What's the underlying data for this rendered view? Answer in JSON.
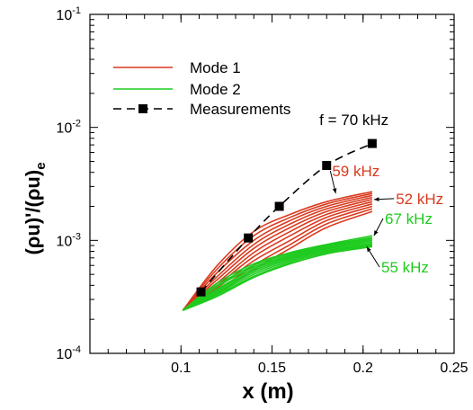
{
  "chart_data": {
    "type": "line",
    "title": "",
    "xlabel": "x (m)",
    "ylabel": "(ρu)'/(ρu)",
    "ylabel_subscript": "e",
    "x_scale": "linear",
    "y_scale": "log",
    "xlim": [
      0.05,
      0.25
    ],
    "ylim": [
      0.0001,
      0.1
    ],
    "x_ticks": [
      0.1,
      0.15,
      0.2,
      0.25
    ],
    "x_tick_labels": [
      "0.1",
      "0.15",
      "0.2",
      "0.25"
    ],
    "y_tick_mantissa": "10",
    "y_ticks": [
      {
        "value": 0.0001,
        "exponent": "-4"
      },
      {
        "value": 0.001,
        "exponent": "-3"
      },
      {
        "value": 0.01,
        "exponent": "-2"
      },
      {
        "value": 0.1,
        "exponent": "-1"
      }
    ],
    "grid": false,
    "legend": {
      "placement": "top-left",
      "entries": [
        {
          "label": "Mode 1",
          "color": "#d93a1e",
          "style": "solid"
        },
        {
          "label": "Mode 2",
          "color": "#1ecb1e",
          "style": "solid"
        },
        {
          "label": "Measurements",
          "color": "#000000",
          "style": "dashed-square"
        }
      ]
    },
    "series": [
      {
        "name": "Measurements",
        "color": "#000000",
        "style": "dashed",
        "marker": "square",
        "x": [
          0.111,
          0.137,
          0.154,
          0.18,
          0.205
        ],
        "y": [
          0.00035,
          0.00105,
          0.002,
          0.0046,
          0.0072
        ]
      },
      {
        "group": "Mode 1",
        "color": "#d93a1e",
        "x": [
          0.101,
          0.12,
          0.14,
          0.16,
          0.18,
          0.205
        ],
        "y": [
          0.00024,
          0.0006,
          0.0012,
          0.0017,
          0.0022,
          0.0027
        ]
      },
      {
        "group": "Mode 1",
        "color": "#d93a1e",
        "x": [
          0.101,
          0.12,
          0.14,
          0.16,
          0.18,
          0.205
        ],
        "y": [
          0.00024,
          0.00056,
          0.0011,
          0.0016,
          0.0021,
          0.0026
        ]
      },
      {
        "group": "Mode 1",
        "color": "#d93a1e",
        "x": [
          0.101,
          0.12,
          0.14,
          0.16,
          0.18,
          0.205
        ],
        "y": [
          0.00024,
          0.00052,
          0.001,
          0.0015,
          0.002,
          0.0025
        ]
      },
      {
        "group": "Mode 1",
        "color": "#d93a1e",
        "x": [
          0.101,
          0.12,
          0.14,
          0.16,
          0.18,
          0.205
        ],
        "y": [
          0.00024,
          0.00048,
          0.00092,
          0.0014,
          0.0019,
          0.0024
        ]
      },
      {
        "group": "Mode 1",
        "color": "#d93a1e",
        "x": [
          0.101,
          0.12,
          0.14,
          0.16,
          0.18,
          0.205
        ],
        "y": [
          0.00024,
          0.00045,
          0.00085,
          0.0013,
          0.0018,
          0.0023
        ]
      },
      {
        "group": "Mode 1",
        "color": "#d93a1e",
        "x": [
          0.101,
          0.12,
          0.14,
          0.16,
          0.18,
          0.205
        ],
        "y": [
          0.00024,
          0.00042,
          0.00078,
          0.0012,
          0.0017,
          0.0022
        ]
      },
      {
        "group": "Mode 1",
        "color": "#d93a1e",
        "x": [
          0.101,
          0.12,
          0.14,
          0.16,
          0.18,
          0.205
        ],
        "y": [
          0.00024,
          0.0004,
          0.00072,
          0.0011,
          0.0016,
          0.0021
        ]
      },
      {
        "group": "Mode 1",
        "color": "#d93a1e",
        "x": [
          0.101,
          0.12,
          0.14,
          0.16,
          0.18,
          0.205
        ],
        "y": [
          0.00024,
          0.00038,
          0.00066,
          0.001,
          0.0015,
          0.002
        ]
      },
      {
        "group": "Mode 1",
        "color": "#d93a1e",
        "x": [
          0.101,
          0.12,
          0.14,
          0.16,
          0.18,
          0.205
        ],
        "y": [
          0.00024,
          0.00036,
          0.0006,
          0.00092,
          0.0014,
          0.0019
        ]
      },
      {
        "group": "Mode 1",
        "color": "#d93a1e",
        "x": [
          0.101,
          0.12,
          0.14,
          0.16,
          0.18,
          0.205
        ],
        "y": [
          0.00024,
          0.00034,
          0.00055,
          0.00085,
          0.0013,
          0.0018
        ]
      },
      {
        "group": "Mode 2",
        "color": "#1ecb1e",
        "x": [
          0.101,
          0.12,
          0.14,
          0.16,
          0.18,
          0.205
        ],
        "y": [
          0.00024,
          0.00042,
          0.00062,
          0.00078,
          0.00092,
          0.0011
        ]
      },
      {
        "group": "Mode 2",
        "color": "#1ecb1e",
        "x": [
          0.101,
          0.12,
          0.14,
          0.16,
          0.18,
          0.205
        ],
        "y": [
          0.00024,
          0.0004,
          0.0006,
          0.00076,
          0.0009,
          0.00106
        ]
      },
      {
        "group": "Mode 2",
        "color": "#1ecb1e",
        "x": [
          0.101,
          0.12,
          0.14,
          0.16,
          0.18,
          0.205
        ],
        "y": [
          0.00024,
          0.00039,
          0.00058,
          0.00074,
          0.00088,
          0.00103
        ]
      },
      {
        "group": "Mode 2",
        "color": "#1ecb1e",
        "x": [
          0.101,
          0.12,
          0.14,
          0.16,
          0.18,
          0.205
        ],
        "y": [
          0.00024,
          0.00037,
          0.00056,
          0.00072,
          0.00086,
          0.001
        ]
      },
      {
        "group": "Mode 2",
        "color": "#1ecb1e",
        "x": [
          0.101,
          0.12,
          0.14,
          0.16,
          0.18,
          0.205
        ],
        "y": [
          0.00024,
          0.00036,
          0.00054,
          0.0007,
          0.00084,
          0.00097
        ]
      },
      {
        "group": "Mode 2",
        "color": "#1ecb1e",
        "x": [
          0.101,
          0.12,
          0.14,
          0.16,
          0.18,
          0.205
        ],
        "y": [
          0.00024,
          0.00035,
          0.00052,
          0.00068,
          0.00082,
          0.00094
        ]
      },
      {
        "group": "Mode 2",
        "color": "#1ecb1e",
        "x": [
          0.101,
          0.12,
          0.14,
          0.16,
          0.18,
          0.205
        ],
        "y": [
          0.00024,
          0.00034,
          0.0005,
          0.00066,
          0.0008,
          0.00092
        ]
      },
      {
        "group": "Mode 2",
        "color": "#1ecb1e",
        "x": [
          0.101,
          0.12,
          0.14,
          0.16,
          0.18,
          0.205
        ],
        "y": [
          0.00024,
          0.00033,
          0.00048,
          0.00064,
          0.00078,
          0.0009
        ]
      },
      {
        "group": "Mode 2",
        "color": "#1ecb1e",
        "x": [
          0.101,
          0.12,
          0.14,
          0.16,
          0.18,
          0.205
        ],
        "y": [
          0.00024,
          0.00032,
          0.00047,
          0.00062,
          0.00076,
          0.00088
        ]
      }
    ],
    "annotations": [
      {
        "text": "f = 70 kHz",
        "color": "#000000",
        "x": 0.176,
        "y": 0.0105,
        "arrow_to": null
      },
      {
        "text": "59 kHz",
        "color": "#d93a1e",
        "x": 0.183,
        "y": 0.0037,
        "arrow_to": [
          0.185,
          0.0026
        ]
      },
      {
        "text": "52 kHz",
        "color": "#d93a1e",
        "x": 0.218,
        "y": 0.0021,
        "arrow_to": [
          0.206,
          0.0023
        ]
      },
      {
        "text": "67 kHz",
        "color": "#1ecb1e",
        "x": 0.212,
        "y": 0.0014,
        "arrow_to": [
          0.206,
          0.0011
        ]
      },
      {
        "text": "55 kHz",
        "color": "#1ecb1e",
        "x": 0.21,
        "y": 0.00052,
        "arrow_to": [
          0.202,
          0.00088
        ]
      }
    ]
  }
}
